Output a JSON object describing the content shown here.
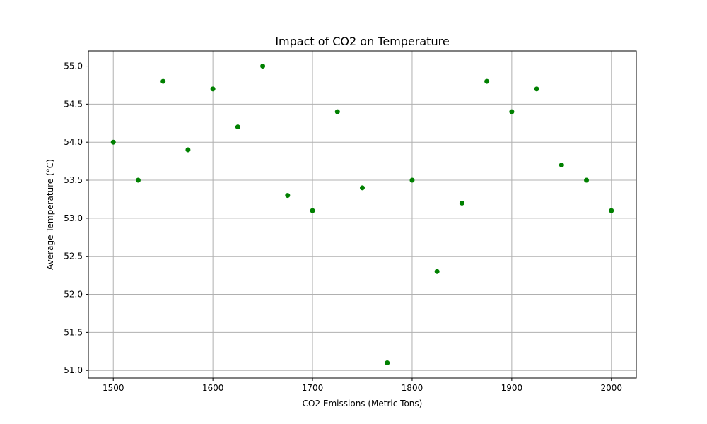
{
  "chart_data": {
    "type": "scatter",
    "title": "Impact of CO2 on Temperature",
    "xlabel": "CO2 Emissions (Metric Tons)",
    "ylabel": "Average Temperature (°C)",
    "xlim": [
      1475,
      2025
    ],
    "ylim": [
      50.9,
      55.2
    ],
    "xticks": [
      "1500",
      "1600",
      "1700",
      "1800",
      "1900",
      "2000"
    ],
    "yticks": [
      "51.0",
      "51.5",
      "52.0",
      "52.5",
      "53.0",
      "53.5",
      "54.0",
      "54.5",
      "55.0"
    ],
    "grid": true,
    "marker_color": "#008000",
    "x": [
      1500,
      1525,
      1550,
      1575,
      1600,
      1625,
      1650,
      1675,
      1700,
      1725,
      1750,
      1775,
      1800,
      1825,
      1850,
      1875,
      1900,
      1925,
      1950,
      1975,
      2000
    ],
    "y": [
      54.0,
      53.5,
      54.8,
      53.9,
      54.7,
      54.2,
      55.0,
      53.3,
      53.1,
      54.4,
      53.4,
      51.1,
      53.5,
      52.3,
      53.2,
      54.8,
      54.4,
      54.7,
      53.7,
      53.5,
      53.1
    ]
  }
}
